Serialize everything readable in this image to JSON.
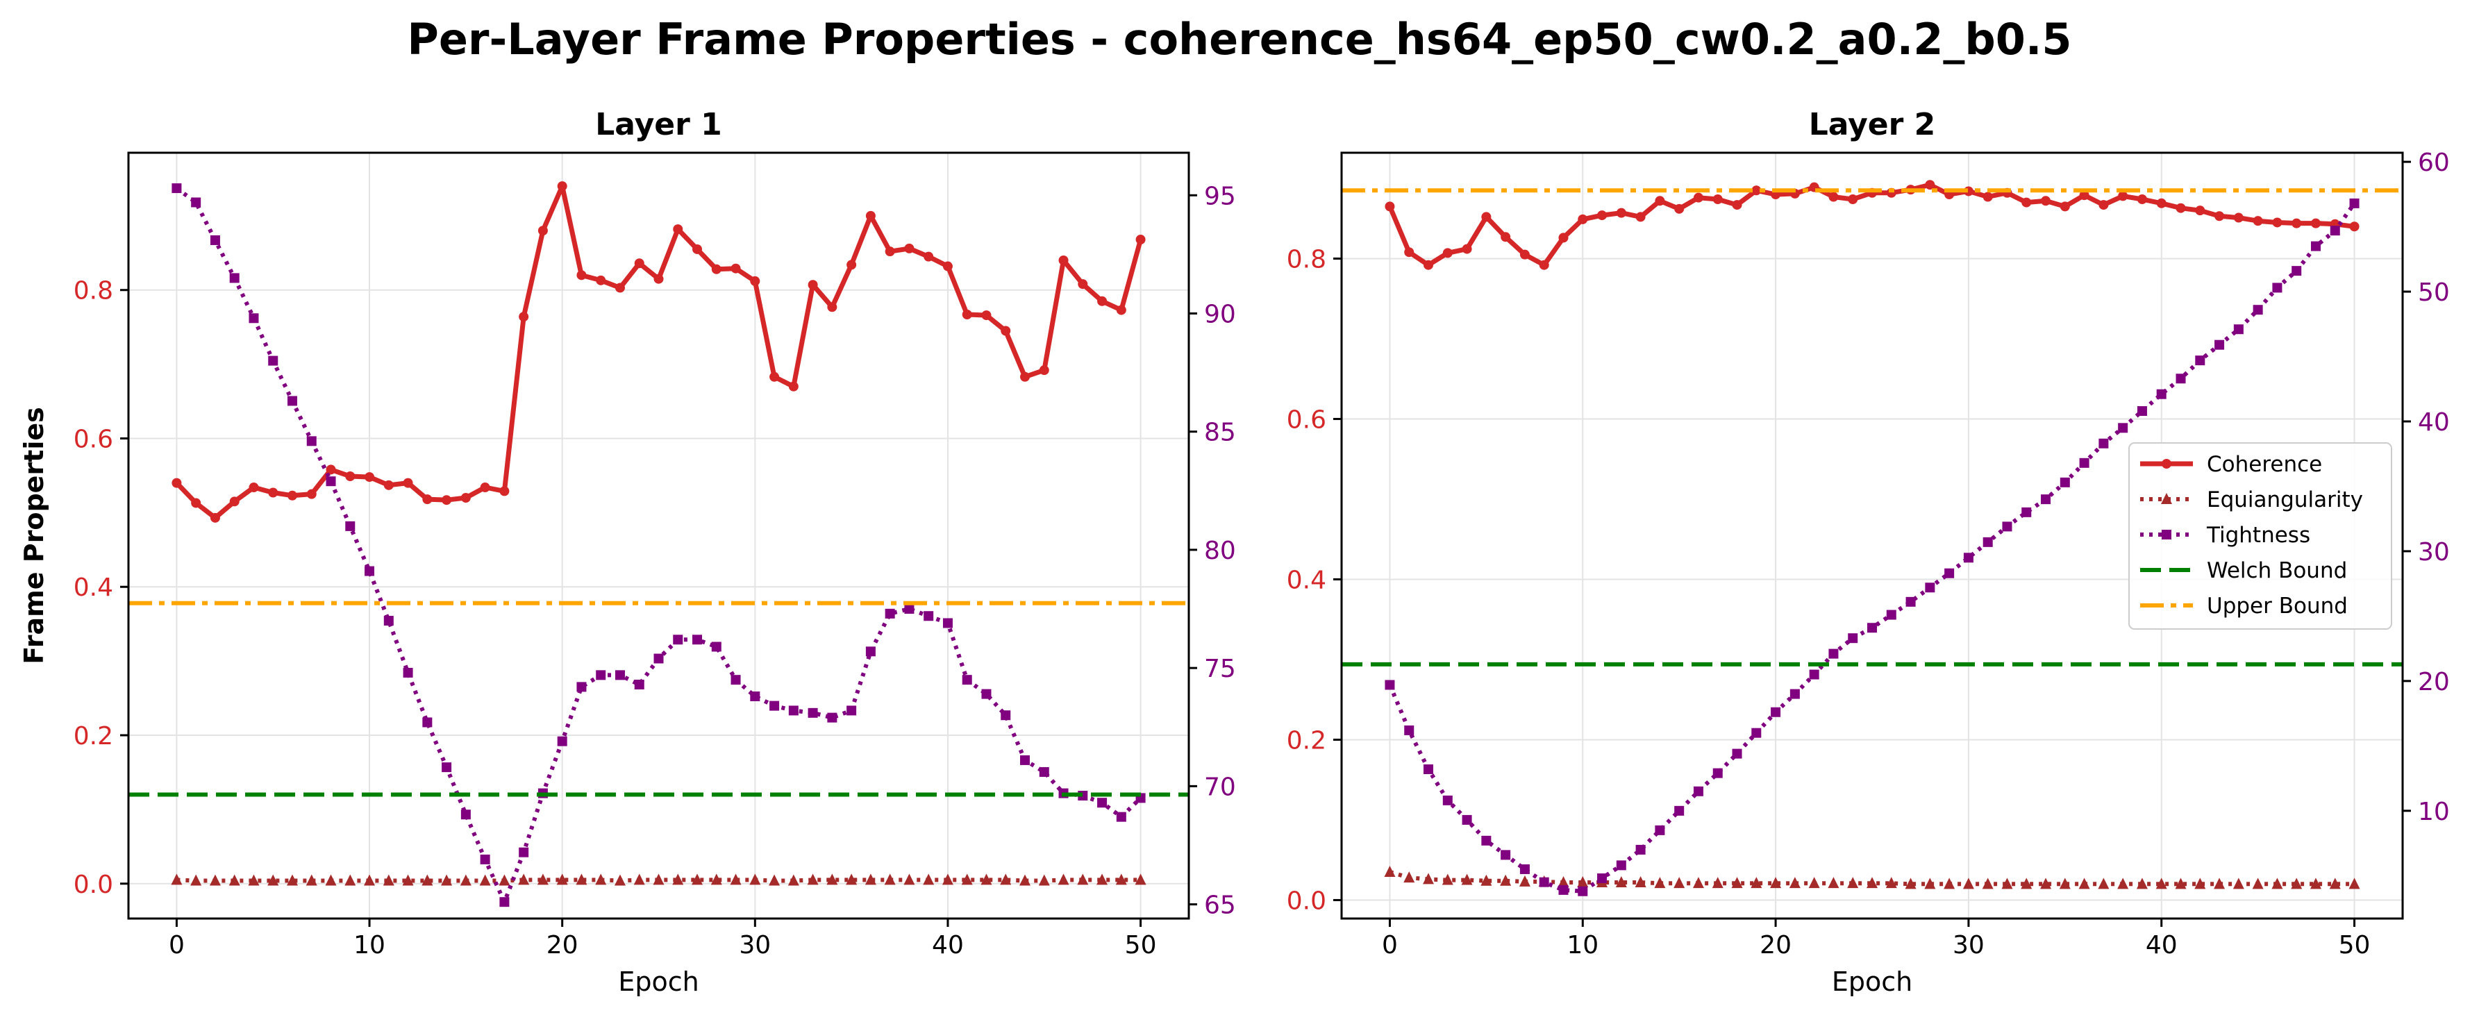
{
  "figure": {
    "title": "Per-Layer Frame Properties - coherence_hs64_ep50_cw0.2_a0.2_b0.5"
  },
  "colors": {
    "coherence": "#d62728",
    "equiangularity": "#a52a2a",
    "tightness": "#800080",
    "welch": "#008000",
    "upper": "#ffa500",
    "left_ticks": "#d62728",
    "right_ticks": "#800080"
  },
  "legend": {
    "placement": "center-right (Layer 2)",
    "entries": [
      "Coherence",
      "Equiangularity",
      "Tightness",
      "Welch Bound",
      "Upper Bound"
    ]
  },
  "chart_data": [
    {
      "type": "line",
      "title": "Layer 1",
      "xlabel": "Epoch",
      "ylabel": "Frame Properties",
      "xlim": [
        -2.5,
        52.5
      ],
      "ylim": [
        -0.047,
        0.985
      ],
      "y2lim": [
        64.4,
        96.8
      ],
      "xticks": [
        "0",
        "10",
        "20",
        "30",
        "40",
        "50"
      ],
      "yticks": [
        "0.0",
        "0.2",
        "0.4",
        "0.6",
        "0.8"
      ],
      "y2ticks": [
        "65",
        "70",
        "75",
        "80",
        "85",
        "90",
        "95"
      ],
      "grid": true,
      "x": [
        0,
        1,
        2,
        3,
        4,
        5,
        6,
        7,
        8,
        9,
        10,
        11,
        12,
        13,
        14,
        15,
        16,
        17,
        18,
        19,
        20,
        21,
        22,
        23,
        24,
        25,
        26,
        27,
        28,
        29,
        30,
        31,
        32,
        33,
        34,
        35,
        36,
        37,
        38,
        39,
        40,
        41,
        42,
        43,
        44,
        45,
        46,
        47,
        48,
        49,
        50
      ],
      "series": [
        {
          "name": "Coherence",
          "axis": "left",
          "values": [
            0.54,
            0.513,
            0.493,
            0.515,
            0.534,
            0.527,
            0.523,
            0.525,
            0.558,
            0.549,
            0.548,
            0.537,
            0.54,
            0.518,
            0.517,
            0.52,
            0.534,
            0.529,
            0.764,
            0.88,
            0.94,
            0.82,
            0.813,
            0.803,
            0.836,
            0.815,
            0.882,
            0.855,
            0.828,
            0.829,
            0.812,
            0.683,
            0.67,
            0.807,
            0.777,
            0.834,
            0.9,
            0.852,
            0.856,
            0.845,
            0.832,
            0.767,
            0.766,
            0.745,
            0.683,
            0.692,
            0.84,
            0.808,
            0.785,
            0.773,
            0.868
          ]
        },
        {
          "name": "Equiangularity",
          "axis": "left",
          "values": [
            0.005,
            0.004,
            0.004,
            0.004,
            0.004,
            0.004,
            0.004,
            0.004,
            0.004,
            0.004,
            0.004,
            0.004,
            0.004,
            0.004,
            0.004,
            0.004,
            0.004,
            0.004,
            0.005,
            0.005,
            0.005,
            0.005,
            0.005,
            0.004,
            0.005,
            0.005,
            0.005,
            0.005,
            0.005,
            0.005,
            0.005,
            0.004,
            0.004,
            0.005,
            0.005,
            0.005,
            0.005,
            0.005,
            0.005,
            0.005,
            0.005,
            0.005,
            0.005,
            0.005,
            0.004,
            0.004,
            0.005,
            0.005,
            0.005,
            0.005,
            0.005
          ]
        },
        {
          "name": "Tightness",
          "axis": "right",
          "values": [
            95.3,
            94.7,
            93.1,
            91.5,
            89.8,
            88.0,
            86.3,
            84.6,
            82.9,
            81.0,
            79.1,
            77.0,
            74.8,
            72.7,
            70.8,
            68.8,
            66.9,
            65.1,
            67.2,
            69.7,
            71.9,
            74.2,
            74.7,
            74.7,
            74.3,
            75.4,
            76.2,
            76.2,
            75.9,
            74.5,
            73.8,
            73.4,
            73.2,
            73.1,
            72.9,
            73.2,
            75.7,
            77.3,
            77.5,
            77.2,
            76.9,
            74.5,
            73.9,
            73.0,
            71.1,
            70.6,
            69.7,
            69.6,
            69.3,
            68.7,
            69.5
          ]
        },
        {
          "name": "Welch Bound",
          "axis": "left",
          "constant": 0.12
        },
        {
          "name": "Upper Bound",
          "axis": "left",
          "constant": 0.378
        }
      ]
    },
    {
      "type": "line",
      "title": "Layer 2",
      "xlabel": "Epoch",
      "ylabel": "",
      "xlim": [
        -2.5,
        52.5
      ],
      "ylim": [
        -0.023,
        0.932
      ],
      "y2lim": [
        1.7,
        60.7
      ],
      "xticks": [
        "0",
        "10",
        "20",
        "30",
        "40",
        "50"
      ],
      "yticks": [
        "0.0",
        "0.2",
        "0.4",
        "0.6",
        "0.8"
      ],
      "y2ticks": [
        "10",
        "20",
        "30",
        "40",
        "50",
        "60"
      ],
      "grid": true,
      "x": [
        0,
        1,
        2,
        3,
        4,
        5,
        6,
        7,
        8,
        9,
        10,
        11,
        12,
        13,
        14,
        15,
        16,
        17,
        18,
        19,
        20,
        21,
        22,
        23,
        24,
        25,
        26,
        27,
        28,
        29,
        30,
        31,
        32,
        33,
        34,
        35,
        36,
        37,
        38,
        39,
        40,
        41,
        42,
        43,
        44,
        45,
        46,
        47,
        48,
        49,
        50
      ],
      "series": [
        {
          "name": "Coherence",
          "axis": "left",
          "values": [
            0.865,
            0.808,
            0.792,
            0.807,
            0.812,
            0.852,
            0.827,
            0.805,
            0.792,
            0.826,
            0.849,
            0.854,
            0.857,
            0.852,
            0.872,
            0.862,
            0.876,
            0.874,
            0.867,
            0.885,
            0.88,
            0.881,
            0.889,
            0.877,
            0.874,
            0.882,
            0.882,
            0.886,
            0.892,
            0.88,
            0.884,
            0.877,
            0.882,
            0.87,
            0.872,
            0.865,
            0.879,
            0.867,
            0.878,
            0.874,
            0.869,
            0.863,
            0.86,
            0.853,
            0.851,
            0.847,
            0.845,
            0.844,
            0.844,
            0.843,
            0.84
          ]
        },
        {
          "name": "Equiangularity",
          "axis": "left",
          "values": [
            0.035,
            0.028,
            0.026,
            0.025,
            0.025,
            0.024,
            0.024,
            0.023,
            0.023,
            0.022,
            0.022,
            0.022,
            0.022,
            0.022,
            0.021,
            0.021,
            0.021,
            0.021,
            0.021,
            0.021,
            0.021,
            0.021,
            0.021,
            0.021,
            0.021,
            0.021,
            0.021,
            0.02,
            0.02,
            0.02,
            0.02,
            0.02,
            0.02,
            0.02,
            0.02,
            0.02,
            0.02,
            0.02,
            0.02,
            0.02,
            0.02,
            0.02,
            0.02,
            0.02,
            0.02,
            0.02,
            0.02,
            0.02,
            0.02,
            0.02,
            0.02
          ]
        },
        {
          "name": "Tightness",
          "axis": "right",
          "values": [
            19.7,
            16.2,
            13.2,
            10.8,
            9.3,
            7.7,
            6.6,
            5.5,
            4.5,
            3.9,
            3.8,
            4.8,
            5.8,
            7.0,
            8.5,
            10.0,
            11.5,
            12.9,
            14.4,
            16.0,
            17.6,
            19.0,
            20.5,
            22.1,
            23.3,
            24.1,
            25.1,
            26.1,
            27.2,
            28.3,
            29.5,
            30.7,
            31.9,
            33.0,
            34.0,
            35.3,
            36.8,
            38.3,
            39.5,
            40.8,
            42.1,
            43.3,
            44.7,
            45.9,
            47.1,
            48.6,
            50.3,
            51.6,
            53.5,
            54.7,
            56.8
          ]
        },
        {
          "name": "Welch Bound",
          "axis": "left",
          "constant": 0.294
        },
        {
          "name": "Upper Bound",
          "axis": "left",
          "constant": 0.885
        }
      ]
    }
  ]
}
